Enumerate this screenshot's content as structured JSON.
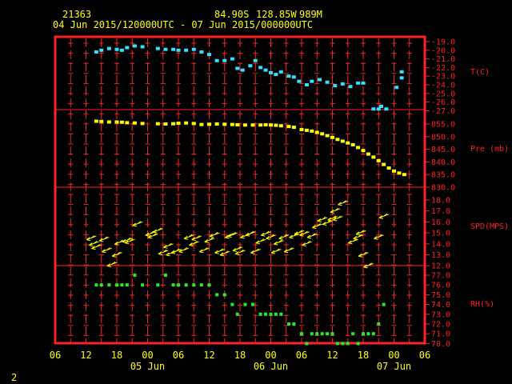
{
  "header": {
    "station": "21363",
    "lat": "84.90S",
    "lon": "128.85W",
    "elev": "989M",
    "range": "04 Jun 2015/120000UTC - 07 Jun 2015/000000UTC"
  },
  "footer": {
    "page": "2"
  },
  "colors": {
    "frame": "#ff2222",
    "text": "#ffff00",
    "temp": "#33e0ff",
    "pres": "#ffff00",
    "wind": "#ffff00",
    "rh": "#22ee22"
  },
  "chart_data": {
    "type": "line",
    "x_axis": {
      "hour_ticks": [
        "06",
        "12",
        "18",
        "00",
        "06",
        "12",
        "18",
        "00",
        "06",
        "12",
        "18",
        "00",
        "06"
      ],
      "day_labels": [
        {
          "label": "05 Jun",
          "at_hours": 24
        },
        {
          "label": "06 Jun",
          "at_hours": 48
        },
        {
          "label": "07 Jun",
          "at_hours": 72
        }
      ],
      "range_hours_from_04jun00utc": [
        6,
        78
      ]
    },
    "panels": [
      {
        "name": "temp",
        "label": "T(C)",
        "ticks": [
          "-19.0",
          "-20.0",
          "-21.0",
          "-22.0",
          "-23.0",
          "-24.0",
          "-25.0",
          "-26.0",
          "-27.0"
        ],
        "ylim": [
          -27,
          -19
        ],
        "points": [
          [
            14,
            -20.2
          ],
          [
            15,
            -20.0
          ],
          [
            16.5,
            -19.8
          ],
          [
            18,
            -19.9
          ],
          [
            19,
            -20.0
          ],
          [
            20,
            -19.7
          ],
          [
            21.5,
            -19.5
          ],
          [
            23,
            -19.6
          ],
          [
            26,
            -19.8
          ],
          [
            27.5,
            -19.9
          ],
          [
            29,
            -19.9
          ],
          [
            30,
            -20.0
          ],
          [
            31.5,
            -20.0
          ],
          [
            33,
            -19.9
          ],
          [
            34.5,
            -20.2
          ],
          [
            36,
            -20.5
          ],
          [
            37.5,
            -21.2
          ],
          [
            39,
            -21.2
          ],
          [
            40.5,
            -21.0
          ],
          [
            41.5,
            -22.1
          ],
          [
            42.5,
            -22.3
          ],
          [
            44,
            -21.8
          ],
          [
            45,
            -21.2
          ],
          [
            46,
            -22.0
          ],
          [
            47,
            -22.3
          ],
          [
            48,
            -22.6
          ],
          [
            49,
            -22.8
          ],
          [
            50,
            -22.5
          ],
          [
            51.5,
            -23.0
          ],
          [
            52.5,
            -23.1
          ],
          [
            53.5,
            -23.6
          ],
          [
            55,
            -24.0
          ],
          [
            56,
            -23.6
          ],
          [
            57.5,
            -23.4
          ],
          [
            59,
            -23.7
          ],
          [
            60.5,
            -24.1
          ],
          [
            62,
            -23.9
          ],
          [
            63.5,
            -24.2
          ],
          [
            65,
            -23.8
          ],
          [
            66,
            -23.8
          ],
          [
            68,
            -26.8
          ],
          [
            69,
            -26.8
          ],
          [
            69.5,
            -26.5
          ],
          [
            70.5,
            -26.8
          ],
          [
            72.5,
            -24.3
          ],
          [
            73.5,
            -22.5
          ],
          [
            73.5,
            -23.2
          ]
        ]
      },
      {
        "name": "pressure",
        "label": "Pre (mb)",
        "ticks": [
          "855.0",
          "850.0",
          "845.0",
          "840.0",
          "835.0",
          "830.0"
        ],
        "ylim": [
          830,
          858.5
        ],
        "points": [
          [
            14,
            856.1
          ],
          [
            15,
            856.0
          ],
          [
            16.5,
            855.8
          ],
          [
            18,
            855.8
          ],
          [
            19,
            855.7
          ],
          [
            20,
            855.5
          ],
          [
            21.5,
            855.4
          ],
          [
            23,
            855.2
          ],
          [
            26,
            855.1
          ],
          [
            27.5,
            855.0
          ],
          [
            29,
            855.1
          ],
          [
            30,
            855.3
          ],
          [
            31.5,
            855.4
          ],
          [
            33,
            855.2
          ],
          [
            34.5,
            854.8
          ],
          [
            36,
            854.9
          ],
          [
            37.5,
            855.0
          ],
          [
            39,
            854.9
          ],
          [
            40.5,
            854.8
          ],
          [
            41.5,
            854.7
          ],
          [
            43,
            854.6
          ],
          [
            44.5,
            854.6
          ],
          [
            46,
            854.6
          ],
          [
            47,
            854.7
          ],
          [
            48,
            854.6
          ],
          [
            49,
            854.5
          ],
          [
            50,
            854.3
          ],
          [
            51.5,
            854.0
          ],
          [
            52.5,
            853.7
          ],
          [
            54,
            852.8
          ],
          [
            55,
            852.5
          ],
          [
            56,
            852.2
          ],
          [
            57,
            851.7
          ],
          [
            58,
            851.1
          ],
          [
            59,
            850.4
          ],
          [
            60,
            849.7
          ],
          [
            61,
            848.9
          ],
          [
            62,
            848.2
          ],
          [
            63,
            847.5
          ],
          [
            64,
            846.8
          ],
          [
            65,
            845.7
          ],
          [
            66,
            844.5
          ],
          [
            67,
            843.1
          ],
          [
            68,
            841.9
          ],
          [
            69,
            840.5
          ],
          [
            70,
            839.0
          ],
          [
            71,
            837.6
          ],
          [
            72,
            836.4
          ],
          [
            73,
            835.6
          ],
          [
            74,
            835.0
          ]
        ]
      },
      {
        "name": "speed",
        "label": "SPD(MPS)",
        "ticks": [
          "18.0",
          "17.0",
          "16.0",
          "15.0",
          "14.0",
          "13.0",
          "12.0"
        ],
        "ylim": [
          12,
          18.8
        ],
        "points": [
          [
            14,
            14.7
          ],
          [
            14.5,
            14.2
          ],
          [
            15,
            13.9
          ],
          [
            16.5,
            14.6
          ],
          [
            17,
            13.6
          ],
          [
            18,
            12.3
          ],
          [
            19,
            13.2
          ],
          [
            19.5,
            14.3
          ],
          [
            21,
            14.5
          ],
          [
            21.5,
            14.4
          ],
          [
            23,
            16.0
          ],
          [
            25.5,
            15.1
          ],
          [
            26,
            14.9
          ],
          [
            27,
            15.4
          ],
          [
            28,
            13.4
          ],
          [
            29,
            14.0
          ],
          [
            29.5,
            13.3
          ],
          [
            30.5,
            13.5
          ],
          [
            32,
            13.6
          ],
          [
            33,
            14.8
          ],
          [
            34,
            14.2
          ],
          [
            34.5,
            14.7
          ],
          [
            36,
            13.6
          ],
          [
            37,
            14.5
          ],
          [
            38,
            15.0
          ],
          [
            39,
            13.5
          ],
          [
            40,
            13.3
          ],
          [
            41,
            14.9
          ],
          [
            41.5,
            15.0
          ],
          [
            42.5,
            13.7
          ],
          [
            43,
            13.4
          ],
          [
            44,
            14.9
          ],
          [
            45,
            15.1
          ],
          [
            46,
            13.5
          ],
          [
            47,
            14.4
          ],
          [
            48,
            15.1
          ],
          [
            49,
            14.8
          ],
          [
            50,
            13.5
          ],
          [
            50.5,
            14.3
          ],
          [
            51.5,
            14.8
          ],
          [
            52.5,
            13.6
          ],
          [
            53.5,
            14.9
          ],
          [
            54.5,
            15.2
          ],
          [
            55.5,
            15.1
          ],
          [
            56,
            14.2
          ],
          [
            57,
            14.9
          ],
          [
            58,
            15.8
          ],
          [
            59,
            16.4
          ],
          [
            60,
            16.1
          ],
          [
            61,
            16.5
          ],
          [
            61.5,
            17.2
          ],
          [
            62,
            16.5
          ],
          [
            63,
            17.9
          ],
          [
            65,
            14.4
          ],
          [
            66,
            14.8
          ],
          [
            66.5,
            15.2
          ],
          [
            67,
            13.2
          ],
          [
            68,
            12.2
          ],
          [
            70,
            14.8
          ],
          [
            71,
            16.7
          ]
        ]
      },
      {
        "name": "rh",
        "label": "RH(%)",
        "ticks": [
          "77.0",
          "76.0",
          "75.0",
          "74.0",
          "73.0",
          "72.0",
          "71.0",
          "70.0"
        ],
        "ylim": [
          70,
          78
        ],
        "points": [
          [
            14,
            76.0
          ],
          [
            15,
            76.0
          ],
          [
            16.5,
            76.0
          ],
          [
            18,
            76.0
          ],
          [
            19,
            76.0
          ],
          [
            20,
            76.0
          ],
          [
            21.5,
            77.0
          ],
          [
            23,
            76.0
          ],
          [
            26,
            76.0
          ],
          [
            27.5,
            77.0
          ],
          [
            29,
            76.0
          ],
          [
            30,
            76.0
          ],
          [
            31.5,
            76.0
          ],
          [
            33,
            76.0
          ],
          [
            34.5,
            76.0
          ],
          [
            36,
            76.0
          ],
          [
            37.5,
            75.0
          ],
          [
            39,
            75.0
          ],
          [
            40.5,
            74.0
          ],
          [
            41.5,
            73.0
          ],
          [
            43,
            74.0
          ],
          [
            44.5,
            74.0
          ],
          [
            46,
            73.0
          ],
          [
            47,
            73.0
          ],
          [
            48,
            73.0
          ],
          [
            49,
            73.0
          ],
          [
            50,
            73.0
          ],
          [
            51.5,
            72.0
          ],
          [
            52.5,
            72.0
          ],
          [
            54,
            71.0
          ],
          [
            55,
            70.0
          ],
          [
            56,
            71.0
          ],
          [
            57,
            71.0
          ],
          [
            58,
            71.0
          ],
          [
            59,
            71.0
          ],
          [
            60,
            71.0
          ],
          [
            61,
            70.0
          ],
          [
            62,
            70.0
          ],
          [
            63,
            70.0
          ],
          [
            64,
            71.0
          ],
          [
            65,
            70.0
          ],
          [
            66,
            71.0
          ],
          [
            67,
            71.0
          ],
          [
            68,
            71.0
          ],
          [
            69,
            72.0
          ],
          [
            70,
            74.0
          ]
        ]
      }
    ]
  }
}
